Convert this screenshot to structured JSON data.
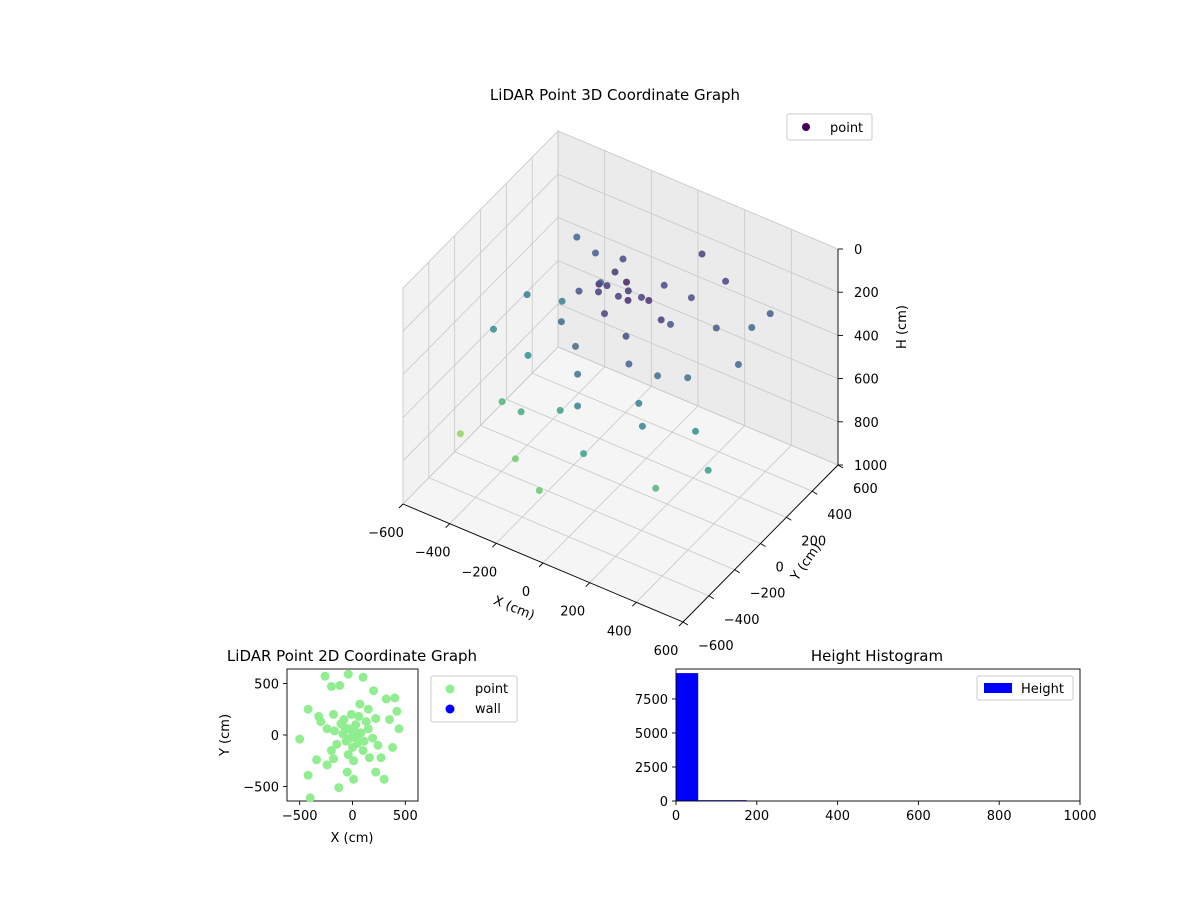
{
  "chart_data": [
    {
      "type": "scatter",
      "projection": "3d",
      "title": "LiDAR Point 3D Coordinate Graph",
      "xlabel": "X (cm)",
      "ylabel": "Y (cm)",
      "zlabel": "H (cm)",
      "xlim": [
        -600,
        600
      ],
      "ylim": [
        -600,
        600
      ],
      "zlim": [
        1000,
        0
      ],
      "xticks": [
        "−600",
        "−400",
        "−200",
        "0",
        "200",
        "400",
        "600"
      ],
      "yticks": [
        "−600",
        "−400",
        "−200",
        "0",
        "200",
        "400",
        "600"
      ],
      "zticks": [
        "0",
        "200",
        "400",
        "600",
        "800",
        "1000"
      ],
      "colormap": "viridis (by height)",
      "grid": true,
      "legend": {
        "position": "upper right",
        "entries": [
          "point"
        ]
      },
      "series": [
        {
          "name": "point",
          "color": "#440154",
          "points": [
            [
              -80,
              40,
              140
            ],
            [
              60,
              -50,
              90
            ],
            [
              -30,
              -70,
              180
            ],
            [
              20,
              10,
              60
            ],
            [
              -100,
              10,
              160
            ],
            [
              110,
              20,
              110
            ],
            [
              0,
              60,
              140
            ],
            [
              -70,
              -40,
              80
            ],
            [
              40,
              90,
              170
            ],
            [
              -20,
              20,
              150
            ],
            [
              -350,
              180,
              420
            ],
            [
              -500,
              -80,
              460
            ],
            [
              -120,
              -250,
              560
            ],
            [
              220,
              -110,
              330
            ],
            [
              300,
              200,
              260
            ],
            [
              410,
              -160,
              470
            ],
            [
              -240,
              -380,
              760
            ],
            [
              380,
              330,
              300
            ],
            [
              80,
              -430,
              560
            ],
            [
              -450,
              90,
              380
            ],
            [
              160,
              260,
              220
            ],
            [
              -180,
              170,
              250
            ],
            [
              260,
              -300,
              430
            ],
            [
              -60,
              -520,
              740
            ],
            [
              450,
              100,
              300
            ],
            [
              -380,
              -230,
              650
            ],
            [
              100,
              450,
              160
            ],
            [
              -290,
              330,
              260
            ],
            [
              520,
              -260,
              540
            ],
            [
              -110,
              -150,
              320
            ],
            [
              130,
              -170,
              280
            ],
            [
              -220,
              -60,
              310
            ],
            [
              170,
              80,
              230
            ],
            [
              -40,
              -260,
              350
            ],
            [
              60,
              230,
              190
            ],
            [
              -150,
              290,
              200
            ],
            [
              310,
              -40,
              340
            ],
            [
              -330,
              -120,
              480
            ],
            [
              240,
              380,
              180
            ],
            [
              -260,
              -300,
              600
            ],
            [
              10,
              -350,
              420
            ],
            [
              350,
              -360,
              640
            ],
            [
              -520,
              -300,
              820
            ],
            [
              420,
              400,
              260
            ],
            [
              -420,
              420,
              300
            ],
            [
              200,
              -220,
              400
            ],
            [
              -90,
              120,
              130
            ],
            [
              90,
              -120,
              200
            ],
            [
              -200,
              40,
              220
            ],
            [
              180,
              -10,
              150
            ]
          ]
        }
      ]
    },
    {
      "type": "scatter",
      "title": "LiDAR Point 2D Coordinate Graph",
      "xlabel": "X (cm)",
      "ylabel": "Y (cm)",
      "xlim": [
        -620,
        620
      ],
      "ylim": [
        -640,
        640
      ],
      "xticks": [
        "−500",
        "0",
        "500"
      ],
      "yticks": [
        "−500",
        "0",
        "500"
      ],
      "legend": {
        "position": "outside right",
        "entries": [
          "point",
          "wall"
        ]
      },
      "series": [
        {
          "name": "point",
          "color": "#90ee90",
          "points": [
            [
              -260,
              570
            ],
            [
              -40,
              590
            ],
            [
              100,
              560
            ],
            [
              -200,
              470
            ],
            [
              -120,
              480
            ],
            [
              200,
              430
            ],
            [
              320,
              350
            ],
            [
              400,
              360
            ],
            [
              -420,
              250
            ],
            [
              -320,
              180
            ],
            [
              -180,
              200
            ],
            [
              150,
              250
            ],
            [
              420,
              230
            ],
            [
              -300,
              130
            ],
            [
              -80,
              150
            ],
            [
              350,
              150
            ],
            [
              -500,
              -40
            ],
            [
              -420,
              -390
            ],
            [
              -340,
              -240
            ],
            [
              -240,
              -290
            ],
            [
              -130,
              -510
            ],
            [
              -400,
              -610
            ],
            [
              -50,
              -360
            ],
            [
              10,
              -430
            ],
            [
              220,
              -360
            ],
            [
              300,
              -430
            ],
            [
              440,
              60
            ],
            [
              380,
              -120
            ],
            [
              270,
              -220
            ],
            [
              -30,
              60
            ],
            [
              40,
              -30
            ],
            [
              -60,
              -60
            ],
            [
              30,
              100
            ],
            [
              80,
              20
            ],
            [
              -90,
              10
            ],
            [
              0,
              -120
            ],
            [
              110,
              -60
            ],
            [
              -150,
              -90
            ],
            [
              150,
              60
            ],
            [
              -110,
              110
            ],
            [
              60,
              180
            ],
            [
              -40,
              -190
            ],
            [
              100,
              -150
            ],
            [
              -170,
              40
            ],
            [
              190,
              -30
            ],
            [
              20,
              40
            ],
            [
              -20,
              -30
            ],
            [
              50,
              -80
            ],
            [
              -70,
              70
            ],
            [
              130,
              130
            ],
            [
              -200,
              -150
            ],
            [
              220,
              160
            ],
            [
              -240,
              60
            ],
            [
              240,
              -100
            ],
            [
              0,
              0
            ],
            [
              -10,
              200
            ],
            [
              10,
              -250
            ],
            [
              160,
              -220
            ],
            [
              -180,
              -230
            ],
            [
              70,
              300
            ]
          ]
        },
        {
          "name": "wall",
          "color": "#0000ff",
          "points": []
        }
      ]
    },
    {
      "type": "bar",
      "subtype": "histogram",
      "title": "Height Histogram",
      "xlim": [
        0,
        1000
      ],
      "ylim": [
        0,
        9700
      ],
      "xticks": [
        "0",
        "200",
        "400",
        "600",
        "800",
        "1000"
      ],
      "yticks": [
        "0",
        "2500",
        "5000",
        "7500"
      ],
      "legend": {
        "position": "upper right",
        "entries": [
          "Height"
        ]
      },
      "series": [
        {
          "name": "Height",
          "color": "#0000ff",
          "bins": [
            [
              0,
              55,
              9400
            ],
            [
              55,
              175,
              60
            ],
            [
              175,
              1000,
              0
            ]
          ]
        }
      ]
    }
  ]
}
